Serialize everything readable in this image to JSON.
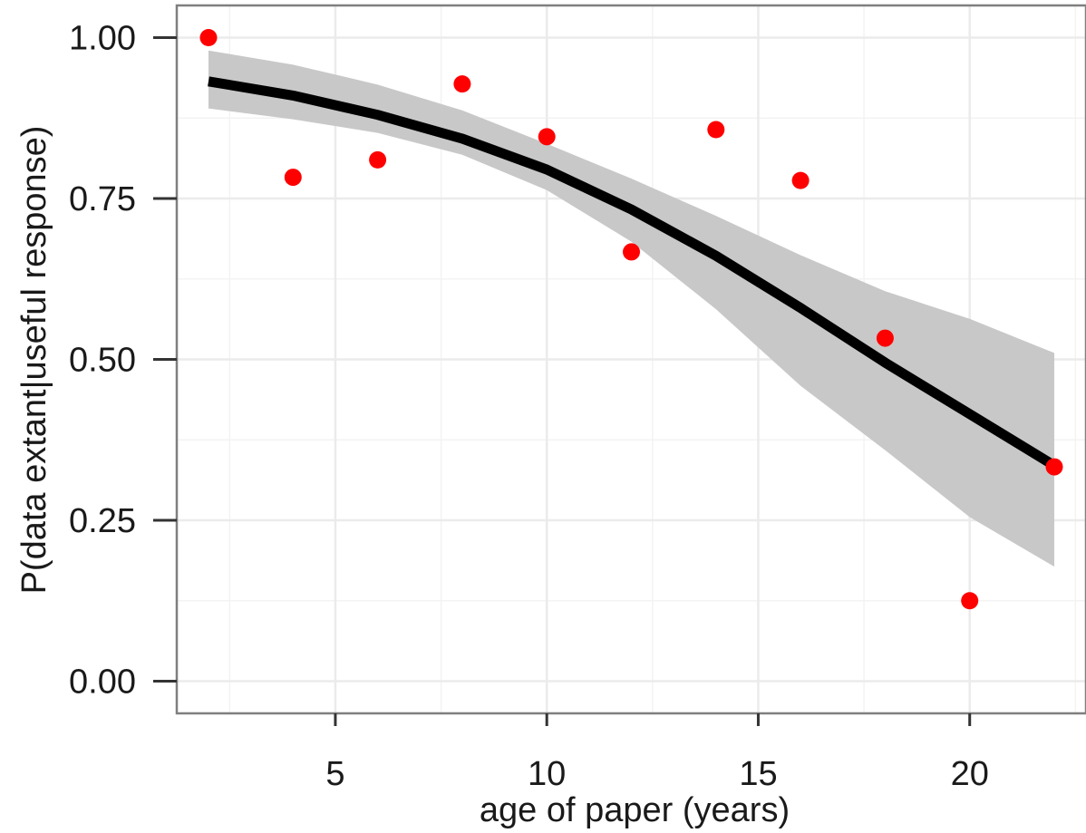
{
  "chart_data": {
    "type": "scatter",
    "title": "",
    "xlabel": "age of paper (years)",
    "ylabel": "P(data extant|useful response)",
    "xlim": [
      1.25,
      22.75
    ],
    "ylim": [
      -0.05,
      1.05
    ],
    "x_ticks": [
      5,
      10,
      15,
      20
    ],
    "x_tick_labels": [
      "5",
      "10",
      "15",
      "20"
    ],
    "y_ticks": [
      0.0,
      0.25,
      0.5,
      0.75,
      1.0
    ],
    "y_tick_labels": [
      "0.00",
      "0.25",
      "0.50",
      "0.75",
      "1.00"
    ],
    "grid": true,
    "legend": "none",
    "colors": {
      "points": "#ff0000",
      "fit_line": "#000000",
      "confidence_band": "#c8c8c8",
      "grid": "#ebebeb",
      "panel_border": "#7f7f7f"
    },
    "series": [
      {
        "kind": "points",
        "x": [
          2,
          4,
          6,
          8,
          10,
          12,
          14,
          16,
          18,
          20,
          22
        ],
        "y": [
          1.0,
          0.783,
          0.81,
          0.928,
          0.846,
          0.667,
          0.857,
          0.778,
          0.533,
          0.125,
          0.333
        ]
      },
      {
        "kind": "fit_line",
        "x": [
          2,
          4,
          6,
          8,
          10,
          12,
          14,
          16,
          18,
          20,
          22
        ],
        "y": [
          0.932,
          0.91,
          0.88,
          0.843,
          0.795,
          0.733,
          0.661,
          0.58,
          0.495,
          0.415,
          0.335
        ]
      },
      {
        "kind": "confidence_band",
        "x": [
          2,
          4,
          6,
          8,
          10,
          12,
          14,
          16,
          18,
          20,
          22
        ],
        "lower": [
          0.89,
          0.873,
          0.852,
          0.818,
          0.763,
          0.683,
          0.578,
          0.459,
          0.359,
          0.255,
          0.178
        ],
        "upper": [
          0.98,
          0.958,
          0.927,
          0.887,
          0.835,
          0.781,
          0.723,
          0.662,
          0.606,
          0.563,
          0.51
        ]
      }
    ]
  }
}
